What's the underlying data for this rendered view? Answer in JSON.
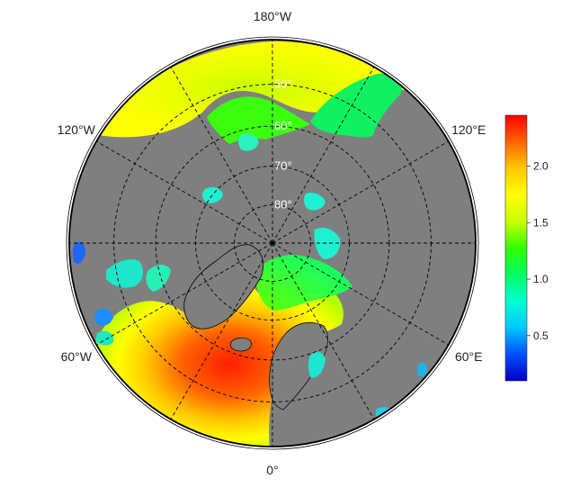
{
  "map": {
    "projection": "north-polar-stereographic",
    "longitude_labels": [
      {
        "text": "180°W",
        "lon": 180
      },
      {
        "text": "120°E",
        "lon": 120
      },
      {
        "text": "60°E",
        "lon": 60
      },
      {
        "text": "0°",
        "lon": 0
      },
      {
        "text": "60°W",
        "lon": -60
      },
      {
        "text": "120°W",
        "lon": -120
      }
    ],
    "latitude_labels": [
      {
        "text": "50°",
        "lat": 50
      },
      {
        "text": "60°",
        "lat": 60
      },
      {
        "text": "70°",
        "lat": 70
      },
      {
        "text": "80°",
        "lat": 80
      }
    ],
    "colors": {
      "land": "#7f7f7f",
      "graticule": "#000000",
      "border": "#000000"
    }
  },
  "colorbar": {
    "ticks": [
      "0.5",
      "1.0",
      "1.5",
      "2.0"
    ],
    "tick_values": [
      0.5,
      1.0,
      1.5,
      2.0
    ],
    "min": 0.1,
    "max": 2.45,
    "colors": [
      "#0000c8",
      "#0050ff",
      "#00c8ff",
      "#00ffd2",
      "#00ff64",
      "#32ff00",
      "#c8ff00",
      "#ffff00",
      "#ffc800",
      "#ff6400",
      "#ff0000"
    ]
  }
}
